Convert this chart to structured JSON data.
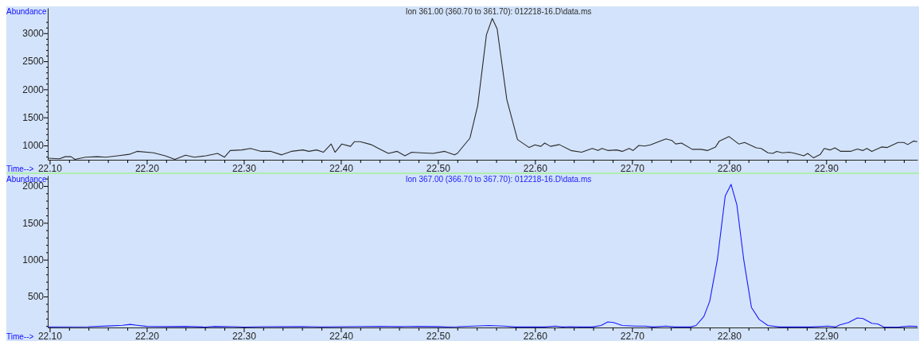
{
  "chart_data": [
    {
      "type": "line",
      "title": "Ion 361.00 (360.70 to 361.70): 012218-16.D\\data.ms",
      "xlabel": "Time-->",
      "ylabel": "Abundance",
      "x": [
        22.098,
        22.11,
        22.116,
        22.122,
        22.126,
        22.137,
        22.149,
        22.158,
        22.17,
        22.182,
        22.19,
        22.207,
        22.219,
        22.229,
        22.24,
        22.249,
        22.261,
        22.273,
        22.28,
        22.286,
        22.298,
        22.307,
        22.318,
        22.328,
        22.339,
        22.349,
        22.361,
        22.367,
        22.375,
        22.382,
        22.39,
        22.394,
        22.401,
        22.41,
        22.414,
        22.42,
        22.431,
        22.44,
        22.449,
        22.458,
        22.466,
        22.473,
        22.482,
        22.495,
        22.507,
        22.517,
        22.52,
        22.533,
        22.541,
        22.55,
        22.556,
        22.561,
        22.571,
        22.582,
        22.594,
        22.6,
        22.606,
        22.61,
        22.616,
        22.625,
        22.637,
        22.648,
        22.659,
        22.665,
        22.669,
        22.675,
        22.684,
        22.69,
        22.697,
        22.701,
        22.707,
        22.713,
        22.719,
        22.729,
        22.735,
        22.741,
        22.745,
        22.751,
        22.762,
        22.771,
        22.778,
        22.786,
        22.79,
        22.8,
        22.81,
        22.816,
        22.828,
        22.833,
        22.84,
        22.845,
        22.849,
        22.855,
        22.862,
        22.868,
        22.877,
        22.881,
        22.887,
        22.894,
        22.898,
        22.904,
        22.909,
        22.915,
        22.925,
        22.932,
        22.938,
        22.942,
        22.947,
        22.957,
        22.963,
        22.974,
        22.98,
        22.984,
        22.99,
        22.994
      ],
      "series": [
        {
          "color": "#2b2b2b",
          "values": [
            774,
            763,
            800,
            800,
            753,
            790,
            800,
            790,
            816,
            842,
            895,
            869,
            816,
            752,
            826,
            790,
            816,
            858,
            790,
            910,
            920,
            947,
            895,
            895,
            832,
            895,
            920,
            895,
            920,
            879,
            1026,
            879,
            1026,
            984,
            1068,
            1068,
            1016,
            937,
            858,
            895,
            816,
            879,
            869,
            858,
            895,
            832,
            858,
            1131,
            1710,
            2973,
            3262,
            3078,
            1815,
            1105,
            963,
            1010,
            984,
            1042,
            984,
            1016,
            910,
            879,
            947,
            910,
            947,
            910,
            920,
            895,
            947,
            910,
            1000,
            990,
            1010,
            1079,
            1116,
            1089,
            1026,
            1042,
            931,
            931,
            910,
            973,
            1079,
            1158,
            1026,
            1052,
            958,
            947,
            869,
            858,
            895,
            869,
            879,
            858,
            816,
            858,
            779,
            842,
            947,
            920,
            958,
            895,
            895,
            937,
            910,
            947,
            895,
            973,
            963,
            1052,
            1052,
            1016,
            1079,
            1068
          ]
        }
      ],
      "xlim": [
        22.098,
        22.994
      ],
      "xticks": [
        {
          "value": 22.1,
          "label": "22.10"
        },
        {
          "value": 22.12,
          "label": null
        },
        {
          "value": 22.14,
          "label": null
        },
        {
          "value": 22.16,
          "label": null
        },
        {
          "value": 22.18,
          "label": null
        },
        {
          "value": 22.2,
          "label": "22.20"
        },
        {
          "value": 22.22,
          "label": null
        },
        {
          "value": 22.24,
          "label": null
        },
        {
          "value": 22.26,
          "label": null
        },
        {
          "value": 22.28,
          "label": null
        },
        {
          "value": 22.3,
          "label": "22.30"
        },
        {
          "value": 22.32,
          "label": null
        },
        {
          "value": 22.34,
          "label": null
        },
        {
          "value": 22.36,
          "label": null
        },
        {
          "value": 22.38,
          "label": null
        },
        {
          "value": 22.4,
          "label": "22.40"
        },
        {
          "value": 22.42,
          "label": null
        },
        {
          "value": 22.44,
          "label": null
        },
        {
          "value": 22.46,
          "label": null
        },
        {
          "value": 22.48,
          "label": null
        },
        {
          "value": 22.5,
          "label": "22.50"
        },
        {
          "value": 22.52,
          "label": null
        },
        {
          "value": 22.54,
          "label": null
        },
        {
          "value": 22.56,
          "label": null
        },
        {
          "value": 22.58,
          "label": null
        },
        {
          "value": 22.6,
          "label": "22.60"
        },
        {
          "value": 22.62,
          "label": null
        },
        {
          "value": 22.64,
          "label": null
        },
        {
          "value": 22.66,
          "label": null
        },
        {
          "value": 22.68,
          "label": null
        },
        {
          "value": 22.7,
          "label": "22.70"
        },
        {
          "value": 22.72,
          "label": null
        },
        {
          "value": 22.74,
          "label": null
        },
        {
          "value": 22.76,
          "label": null
        },
        {
          "value": 22.78,
          "label": null
        },
        {
          "value": 22.8,
          "label": "22.80"
        },
        {
          "value": 22.82,
          "label": null
        },
        {
          "value": 22.84,
          "label": null
        },
        {
          "value": 22.86,
          "label": null
        },
        {
          "value": 22.88,
          "label": null
        },
        {
          "value": 22.9,
          "label": "22.90"
        },
        {
          "value": 22.92,
          "label": null
        },
        {
          "value": 22.94,
          "label": null
        },
        {
          "value": 22.96,
          "label": null
        },
        {
          "value": 22.98,
          "label": null
        }
      ],
      "ylim": [
        745,
        3450
      ],
      "yticks": [
        {
          "value": 800,
          "label": null
        },
        {
          "value": 900,
          "label": null
        },
        1000,
        {
          "value": 1100,
          "label": null
        },
        {
          "value": 1200,
          "label": null
        },
        {
          "value": 1300,
          "label": null
        },
        {
          "value": 1400,
          "label": null
        },
        1500,
        {
          "value": 1600,
          "label": null
        },
        {
          "value": 1700,
          "label": null
        },
        {
          "value": 1800,
          "label": null
        },
        {
          "value": 1900,
          "label": null
        },
        2000,
        {
          "value": 2100,
          "label": null
        },
        {
          "value": 2200,
          "label": null
        },
        {
          "value": 2300,
          "label": null
        },
        {
          "value": 2400,
          "label": null
        },
        2500,
        {
          "value": 2600,
          "label": null
        },
        {
          "value": 2700,
          "label": null
        },
        {
          "value": 2800,
          "label": null
        },
        {
          "value": 2900,
          "label": null
        },
        3000,
        {
          "value": 3100,
          "label": null
        },
        {
          "value": 3200,
          "label": null
        }
      ]
    },
    {
      "type": "line",
      "title": "Ion 367.00 (366.70 to 367.70): 012218-16.D\\data.ms",
      "xlabel": "Time-->",
      "ylabel": "Abundance",
      "x": [
        22.098,
        22.14,
        22.16,
        22.175,
        22.183,
        22.19,
        22.2,
        22.22,
        22.24,
        22.26,
        22.27,
        22.29,
        22.3,
        22.32,
        22.36,
        22.38,
        22.4,
        22.42,
        22.44,
        22.46,
        22.48,
        22.5,
        22.51,
        22.52,
        22.553,
        22.568,
        22.58,
        22.592,
        22.61,
        22.621,
        22.628,
        22.637,
        22.646,
        22.659,
        22.668,
        22.675,
        22.681,
        22.69,
        22.704,
        22.713,
        22.722,
        22.735,
        22.744,
        22.76,
        22.766,
        22.774,
        22.78,
        22.788,
        22.796,
        22.802,
        22.808,
        22.815,
        22.823,
        22.831,
        22.84,
        22.852,
        22.869,
        22.884,
        22.902,
        22.91,
        22.914,
        22.923,
        22.932,
        22.938,
        22.947,
        22.953,
        22.959,
        22.968,
        22.976,
        22.985,
        22.994
      ],
      "series": [
        {
          "color": "#1a1aff",
          "values": [
            88,
            90,
            100,
            110,
            122,
            110,
            95,
            92,
            95,
            86,
            95,
            90,
            86,
            90,
            94,
            88,
            90,
            94,
            96,
            92,
            95,
            92,
            88,
            90,
            107,
            99,
            87,
            87,
            87,
            99,
            87,
            91,
            87,
            87,
            107,
            156,
            148,
            107,
            99,
            99,
            87,
            99,
            87,
            87,
            107,
            230,
            435,
            1007,
            1866,
            2022,
            1744,
            1007,
            353,
            189,
            107,
            87,
            87,
            87,
            99,
            87,
            115,
            148,
            209,
            201,
            136,
            128,
            87,
            85,
            87,
            99,
            95
          ]
        }
      ],
      "xlim": [
        22.098,
        22.994
      ],
      "xticks": [
        {
          "value": 22.1,
          "label": "22.10"
        },
        {
          "value": 22.12,
          "label": null
        },
        {
          "value": 22.14,
          "label": null
        },
        {
          "value": 22.16,
          "label": null
        },
        {
          "value": 22.18,
          "label": null
        },
        {
          "value": 22.2,
          "label": "22.20"
        },
        {
          "value": 22.22,
          "label": null
        },
        {
          "value": 22.24,
          "label": null
        },
        {
          "value": 22.26,
          "label": null
        },
        {
          "value": 22.28,
          "label": null
        },
        {
          "value": 22.3,
          "label": "22.30"
        },
        {
          "value": 22.32,
          "label": null
        },
        {
          "value": 22.34,
          "label": null
        },
        {
          "value": 22.36,
          "label": null
        },
        {
          "value": 22.38,
          "label": null
        },
        {
          "value": 22.4,
          "label": "22.40"
        },
        {
          "value": 22.42,
          "label": null
        },
        {
          "value": 22.44,
          "label": null
        },
        {
          "value": 22.46,
          "label": null
        },
        {
          "value": 22.48,
          "label": null
        },
        {
          "value": 22.5,
          "label": "22.50"
        },
        {
          "value": 22.52,
          "label": null
        },
        {
          "value": 22.54,
          "label": null
        },
        {
          "value": 22.56,
          "label": null
        },
        {
          "value": 22.58,
          "label": null
        },
        {
          "value": 22.6,
          "label": "22.60"
        },
        {
          "value": 22.62,
          "label": null
        },
        {
          "value": 22.64,
          "label": null
        },
        {
          "value": 22.66,
          "label": null
        },
        {
          "value": 22.68,
          "label": null
        },
        {
          "value": 22.7,
          "label": "22.70"
        },
        {
          "value": 22.72,
          "label": null
        },
        {
          "value": 22.74,
          "label": null
        },
        {
          "value": 22.76,
          "label": null
        },
        {
          "value": 22.78,
          "label": null
        },
        {
          "value": 22.8,
          "label": "22.80"
        },
        {
          "value": 22.82,
          "label": null
        },
        {
          "value": 22.84,
          "label": null
        },
        {
          "value": 22.86,
          "label": null
        },
        {
          "value": 22.88,
          "label": null
        },
        {
          "value": 22.9,
          "label": "22.90"
        },
        {
          "value": 22.92,
          "label": null
        },
        {
          "value": 22.94,
          "label": null
        },
        {
          "value": 22.96,
          "label": null
        },
        {
          "value": 22.98,
          "label": null
        }
      ],
      "ylim": [
        80,
        2140
      ],
      "yticks": [
        {
          "value": 100,
          "label": null
        },
        {
          "value": 200,
          "label": null
        },
        {
          "value": 300,
          "label": null
        },
        {
          "value": 400,
          "label": null
        },
        500,
        {
          "value": 600,
          "label": null
        },
        {
          "value": 700,
          "label": null
        },
        {
          "value": 800,
          "label": null
        },
        {
          "value": 900,
          "label": null
        },
        1000,
        {
          "value": 1100,
          "label": null
        },
        {
          "value": 1200,
          "label": null
        },
        {
          "value": 1300,
          "label": null
        },
        {
          "value": 1400,
          "label": null
        },
        1500,
        {
          "value": 1600,
          "label": null
        },
        {
          "value": 1700,
          "label": null
        },
        {
          "value": 1800,
          "label": null
        },
        {
          "value": 1900,
          "label": null
        },
        2000,
        {
          "value": 2100,
          "label": null
        }
      ]
    }
  ]
}
